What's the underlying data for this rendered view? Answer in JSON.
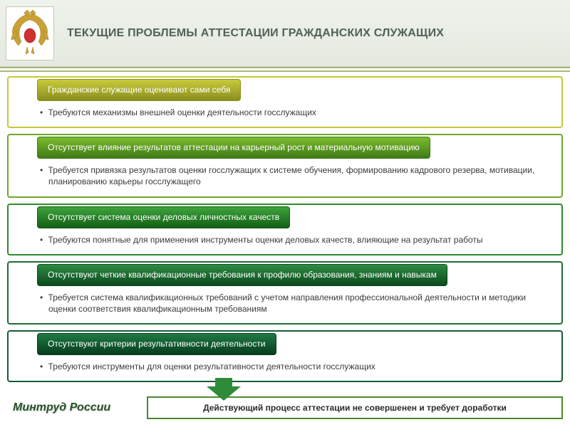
{
  "title": "ТЕКУЩИЕ ПРОБЛЕМЫ АТТЕСТАЦИИ ГРАЖДАНСКИХ СЛУЖАЩИХ",
  "colors": {
    "header_bg_top": "#eef2ec",
    "header_bg_bottom": "#e4eae0",
    "title_color": "#52605a",
    "divider_color": "#a6b87b",
    "arrow_fill": "#2e8b3a",
    "conclusion_border": "#4a8a2e",
    "ministry_color": "#2a5228"
  },
  "blocks": [
    {
      "border_color": "#c5c837",
      "pill_gradient_top": "#c8ca3a",
      "pill_gradient_bottom": "#8a8f1f",
      "heading": "Гражданские служащие оценивают сами себя",
      "body": "Требуются  механизмы внешней оценки деятельности госслужащих"
    },
    {
      "border_color": "#6fa82a",
      "pill_gradient_top": "#7bbb2f",
      "pill_gradient_bottom": "#3f7a16",
      "heading": "Отсутствует влияние результатов аттестации на карьерный рост и материальную мотивацию",
      "body": "Требуется привязка результатов оценки госслужащих к системе обучения, формированию кадрового резерва,  мотивации, планированию карьеры госслужащего"
    },
    {
      "border_color": "#2e8a2d",
      "pill_gradient_top": "#3fa33d",
      "pill_gradient_bottom": "#125f14",
      "heading": "Отсутствует система оценки  деловых личностных качеств",
      "body": "Требуются понятные  для применения инструменты оценки деловых качеств, влияющие на результат работы"
    },
    {
      "border_color": "#1f6d32",
      "pill_gradient_top": "#2e8b44",
      "pill_gradient_bottom": "#0b4a1c",
      "heading": "Отсутствуют четкие  квалификационные требования к профилю образования, знаниям и навыкам",
      "body": "Требуется  система квалификационных требований с учетом направления профессиональной деятельности и методики оценки соответствия квалификационным требованиям"
    },
    {
      "border_color": "#165c35",
      "pill_gradient_top": "#1f7a43",
      "pill_gradient_bottom": "#063c1e",
      "heading": "Отсутствуют критерии результативности деятельности",
      "body": "Требуются  инструменты для оценки результативности деятельности госслужащих"
    }
  ],
  "footer": {
    "ministry": "Минтруд России",
    "conclusion": "Действующий процесс аттестации не совершенен и требует доработки"
  }
}
